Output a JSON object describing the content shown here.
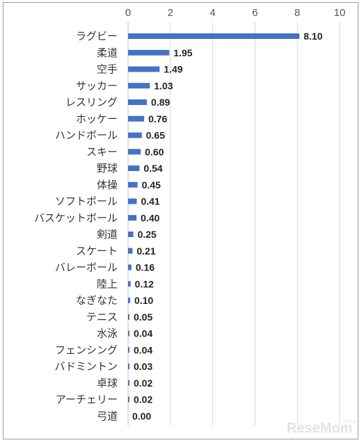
{
  "chart_data": {
    "type": "bar",
    "orientation": "horizontal",
    "categories": [
      "ラグビー",
      "柔道",
      "空手",
      "サッカー",
      "レスリング",
      "ホッケー",
      "ハンドボール",
      "スキー",
      "野球",
      "体操",
      "ソフトボール",
      "バスケットボール",
      "剣道",
      "スケート",
      "バレーボール",
      "陸上",
      "なぎなた",
      "テニス",
      "水泳",
      "フェンシング",
      "バドミントン",
      "卓球",
      "アーチェリー",
      "弓道"
    ],
    "values": [
      8.1,
      1.95,
      1.49,
      1.03,
      0.89,
      0.76,
      0.65,
      0.6,
      0.54,
      0.45,
      0.41,
      0.4,
      0.25,
      0.21,
      0.16,
      0.12,
      0.1,
      0.05,
      0.04,
      0.04,
      0.03,
      0.02,
      0.02,
      0.0
    ],
    "value_labels": [
      "8.10",
      "1.95",
      "1.49",
      "1.03",
      "0.89",
      "0.76",
      "0.65",
      "0.60",
      "0.54",
      "0.45",
      "0.41",
      "0.40",
      "0.25",
      "0.21",
      "0.16",
      "0.12",
      "0.10",
      "0.05",
      "0.04",
      "0.04",
      "0.03",
      "0.02",
      "0.02",
      "0.00"
    ],
    "x_ticks": [
      "0",
      "2",
      "4",
      "6",
      "8",
      "10"
    ],
    "xlim": [
      0,
      10
    ],
    "axis_position": "top",
    "grid": true,
    "legend": "none",
    "title": "",
    "xlabel": "",
    "ylabel": "",
    "bar_color": "#4472c4",
    "grid_color": "#d9d9d9"
  },
  "watermark": {
    "text": "ReseMom",
    "kana": "リセマム"
  }
}
